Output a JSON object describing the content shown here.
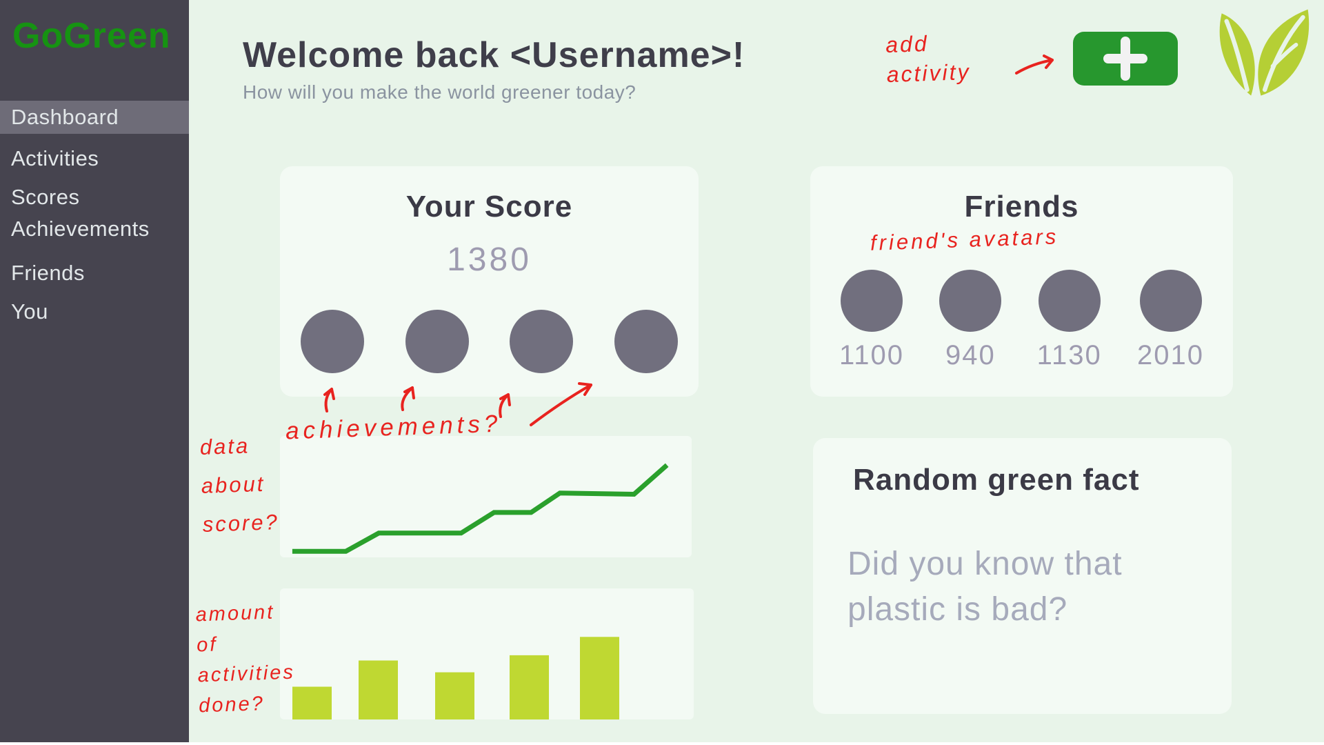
{
  "app": {
    "name": "GoGreen"
  },
  "sidebar": {
    "items": [
      {
        "label": "Dashboard",
        "active": true
      },
      {
        "label": "Activities",
        "active": false
      },
      {
        "label": "Scores",
        "active": false
      },
      {
        "label": "Achievements",
        "active": false
      },
      {
        "label": "Friends",
        "active": false
      },
      {
        "label": "You",
        "active": false
      }
    ]
  },
  "header": {
    "title": "Welcome back <Username>!",
    "subtitle": "How will you make the world greener today?"
  },
  "toolbar": {
    "add_activity_icon": "plus-icon",
    "logo_icon": "leaf-icon"
  },
  "score_card": {
    "title": "Your Score",
    "score": "1380",
    "achievement_slots": 4
  },
  "friends_card": {
    "title": "Friends",
    "friends": [
      {
        "score": "1100"
      },
      {
        "score": "940"
      },
      {
        "score": "1130"
      },
      {
        "score": "2010"
      }
    ]
  },
  "fact_card": {
    "title": "Random green fact",
    "body_line1": "Did you know that",
    "body_line2": "plastic is bad?"
  },
  "annotations": {
    "add_activity": [
      "add",
      "activity"
    ],
    "achievements": "achievements?",
    "friends_avatars": "friend's avatars",
    "score_chart": [
      "data",
      "about",
      "score?"
    ],
    "bar_chart": [
      "amount",
      "of",
      "activities",
      "done?"
    ]
  },
  "chart_data": [
    {
      "id": "score-line-chart",
      "type": "line",
      "title": "",
      "xlabel": "",
      "ylabel": "",
      "annotation": "data about score?",
      "axes_shown": false,
      "grid": false,
      "line_color": "#2aa02c",
      "x_percent": [
        3,
        16,
        24,
        44,
        52,
        61,
        68,
        86,
        94
      ],
      "y_percent_from_bottom": [
        5,
        5,
        20,
        20,
        37,
        37,
        53,
        52,
        76
      ]
    },
    {
      "id": "activities-bar-chart",
      "type": "bar",
      "title": "",
      "xlabel": "",
      "ylabel": "",
      "annotation": "amount of activities done?",
      "axes_shown": false,
      "grid": false,
      "bar_color": "#bfd832",
      "categories": [
        "",
        "",
        "",
        "",
        ""
      ],
      "values_percent_height": [
        25,
        45,
        36,
        49,
        63
      ],
      "x_percent": [
        3,
        19,
        37.5,
        55.5,
        72.5
      ],
      "bar_width_percent": 9.5
    }
  ],
  "colors": {
    "sidebar_bg": "#46444f",
    "sidebar_highlight": "#6e6c78",
    "main_bg": "#e8f4e9",
    "card_bg": "#f3faf4",
    "brand_green": "#169312",
    "button_green": "#27972e",
    "leaf_green": "#b5cf35",
    "line_green": "#2aa02c",
    "bar_green": "#bfd832",
    "heading_text": "#3f3e4a",
    "muted_text": "#9e9bb0",
    "avatar_gray": "#716f7e",
    "annotation_red": "#e8231f"
  }
}
